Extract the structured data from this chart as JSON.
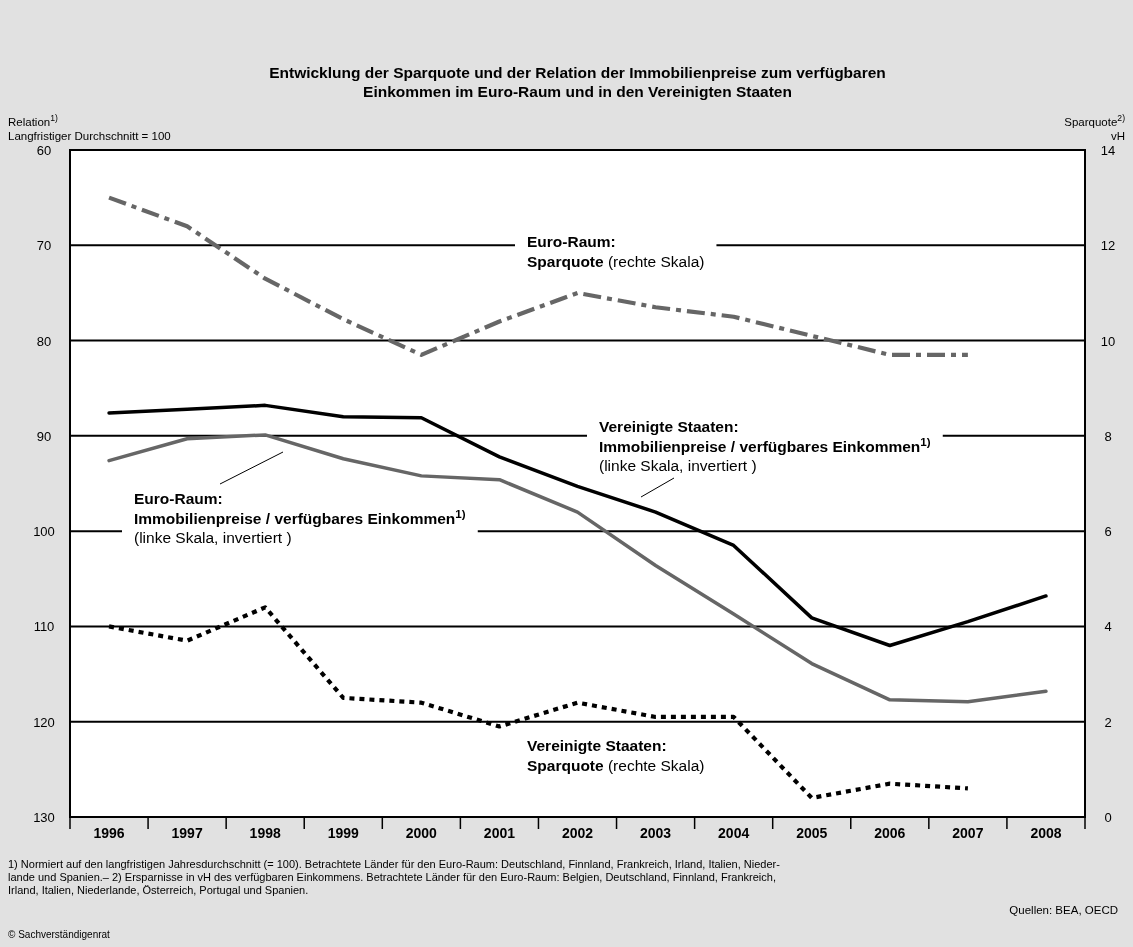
{
  "chart_data": {
    "type": "line",
    "title": "Entwicklung der Sparquote und der Relation der Immobilienpreise zum verfügbaren\nEinkommen im Euro-Raum und in den Vereinigten Staaten",
    "ylabel": "Relation$^{1)}$\nLangfristiger Durchschnitt = 100",
    "y2label": "Sparquote$^{2)}$\nvH",
    "categories": [
      "1996",
      "1997",
      "1998",
      "1999",
      "2000",
      "2001",
      "2002",
      "2003",
      "2004",
      "2005",
      "2006",
      "2007",
      "2008"
    ],
    "series": [
      {
        "name": "Euro-Raum:\nSparquote (rechte Skala)",
        "color": "#666666",
        "axis": "y2",
        "line_style": "dashed",
        "values": [
          13.0,
          12.4,
          11.3,
          10.45,
          9.7,
          10.4,
          11.0,
          10.7,
          10.5,
          10.1,
          9.7,
          9.7,
          null
        ]
      },
      {
        "name": "Vereinigte Staaten:\nImmobilienpreise / verfügbares Einkommen$^{1)}$\n(linke Skala, invertiert )",
        "color": "#000000",
        "line_style": "solid",
        "values": [
          87.6,
          87.2,
          86.8,
          88.0,
          88.1,
          92.2,
          95.3,
          98.0,
          101.5,
          109.1,
          112.0,
          109.5,
          106.8
        ]
      },
      {
        "name": "Euro-Raum:\nImmobilienpreise / verfügbares Einkommen$^{1)}$\n(linke Skala, invertiert )",
        "color": "#666666",
        "line_style": "solid",
        "values": [
          92.6,
          90.3,
          89.9,
          92.4,
          94.2,
          94.6,
          98.0,
          103.6,
          108.7,
          113.9,
          117.7,
          117.9,
          116.8
        ]
      },
      {
        "name": "Vereinigte Staaten:\nSparquote (rechte Skala)",
        "color": "#000000",
        "axis": "y2",
        "line_style": "dotted",
        "values": [
          4.0,
          3.7,
          4.4,
          2.5,
          2.4,
          1.9,
          2.4,
          2.1,
          2.1,
          0.4,
          0.7,
          0.6,
          null
        ]
      }
    ],
    "ylim": [
      130,
      60
    ],
    "yticks": [
      60,
      70,
      80,
      90,
      100,
      110,
      120,
      130
    ],
    "y2lim": [
      0,
      14
    ],
    "y2ticks": [
      0,
      2,
      4,
      6,
      8,
      10,
      12,
      14
    ],
    "grid": "y",
    "marker": "none",
    "annotations": [
      "1) Normiert auf den langfristigen Jahresdurchschnitt (= 100). Betrachtete Länder für den Euro-Raum: Deutschland, Finnland, Frankreich, Irland, Italien, Nieder-\nlande und Spanien.– 2) Ersparnisse in vH des verfügbaren Einkommens. Betrachtete Länder für den Euro-Raum: Belgien, Deutschland, Finnland, Frankreich,\nIrland, Italien, Niederlande, Österreich, Portugal und Spanien.",
      "Quellen: BEA, OECD",
      "© Sachverständigenrat"
    ]
  }
}
